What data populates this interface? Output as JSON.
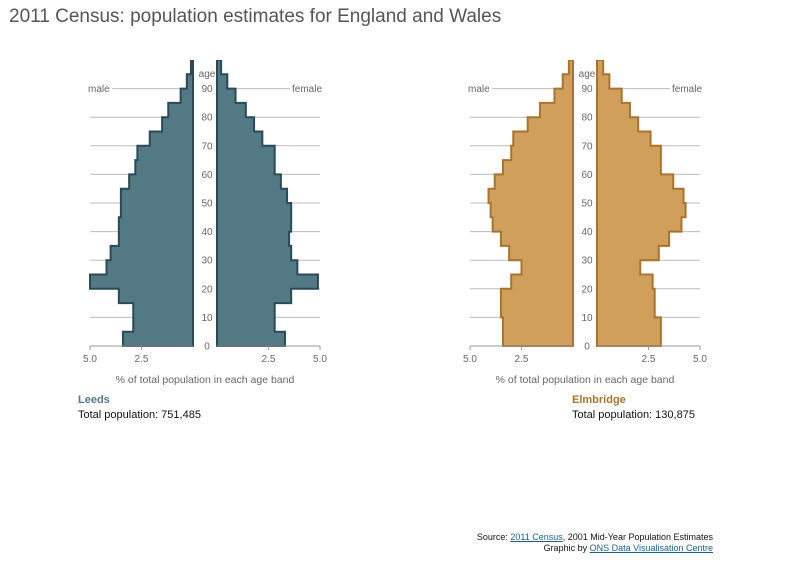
{
  "title": "2011 Census: population estimates for England and Wales",
  "colors": {
    "leeds_fill": "#537985",
    "leeds_stroke": "#2a4a56",
    "elmbridge_fill": "#cf9f5b",
    "elmbridge_stroke": "#a7742f",
    "grid": "#bbbbbb",
    "axis_text": "#666666"
  },
  "chart_data": [
    {
      "type": "population-pyramid",
      "area": "Leeds",
      "total_label": "Total population: 751,485",
      "left_label": "male",
      "right_label": "female",
      "age_axis_label": "age",
      "age_ticks": [
        "0",
        "10",
        "20",
        "30",
        "40",
        "50",
        "60",
        "70",
        "80",
        "90"
      ],
      "x_tick_labels": [
        "5.0",
        "2.5",
        "2.5",
        "5.0"
      ],
      "xlabel": "% of total population in each age band",
      "xlim": [
        0,
        5.0
      ],
      "age_bands": [
        0,
        5,
        10,
        15,
        20,
        25,
        30,
        35,
        40,
        45,
        50,
        55,
        60,
        65,
        70,
        75,
        80,
        85,
        90,
        95
      ],
      "series": [
        {
          "name": "male",
          "values": [
            3.4,
            2.9,
            2.9,
            3.6,
            5.0,
            4.2,
            4.0,
            3.6,
            3.6,
            3.5,
            3.5,
            3.1,
            2.8,
            2.7,
            2.1,
            1.5,
            1.2,
            0.6,
            0.3,
            0.1
          ]
        },
        {
          "name": "female",
          "values": [
            3.3,
            2.8,
            2.8,
            3.6,
            4.9,
            3.9,
            3.6,
            3.5,
            3.6,
            3.6,
            3.4,
            3.1,
            2.8,
            2.8,
            2.2,
            1.8,
            1.4,
            0.9,
            0.5,
            0.2
          ]
        }
      ]
    },
    {
      "type": "population-pyramid",
      "area": "Elmbridge",
      "total_label": "Total population: 130,875",
      "left_label": "male",
      "right_label": "female",
      "age_axis_label": "age",
      "age_ticks": [
        "0",
        "10",
        "20",
        "30",
        "40",
        "50",
        "60",
        "70",
        "80",
        "90"
      ],
      "x_tick_labels": [
        "5.0",
        "2.5",
        "2.5",
        "5.0"
      ],
      "xlabel": "% of total population in each age band",
      "xlim": [
        0,
        5.0
      ],
      "age_bands": [
        0,
        5,
        10,
        15,
        20,
        25,
        30,
        35,
        40,
        45,
        50,
        55,
        60,
        65,
        70,
        75,
        80,
        85,
        90,
        95
      ],
      "series": [
        {
          "name": "male",
          "values": [
            3.4,
            3.4,
            3.5,
            3.5,
            3.0,
            2.5,
            3.1,
            3.5,
            3.9,
            4.0,
            4.1,
            3.8,
            3.4,
            3.0,
            2.9,
            2.2,
            1.6,
            0.9,
            0.5,
            0.2
          ]
        },
        {
          "name": "female",
          "values": [
            3.1,
            3.1,
            2.8,
            2.8,
            2.7,
            2.1,
            3.0,
            3.5,
            4.1,
            4.3,
            4.2,
            3.7,
            3.1,
            3.1,
            2.6,
            2.0,
            1.6,
            1.2,
            0.6,
            0.3
          ]
        }
      ]
    }
  ],
  "source": {
    "prefix": "Source: ",
    "link1": "2011 Census",
    "mid": ", 2001 Mid-Year Population Estimates",
    "line2_prefix": "Graphic by ",
    "link2": "ONS Data Visualisation Centre"
  }
}
